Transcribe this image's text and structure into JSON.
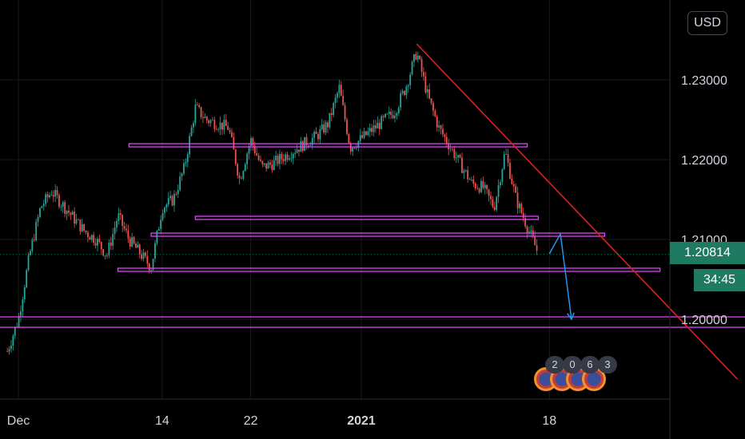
{
  "toolbar": {
    "currency_label": "USD"
  },
  "price_tag": {
    "value": "1.20814"
  },
  "countdown": {
    "value": "34:45"
  },
  "events": {
    "values": [
      "2",
      "0",
      "6",
      "3"
    ]
  },
  "colors": {
    "background": "#000000",
    "grid": "#1a1a1a",
    "up_candle": "#26a69a",
    "down_candle": "#ef5350",
    "zone": "#e040fb",
    "trendline": "#e02020",
    "projection": "#2196f3",
    "axis_text": "#d1d4dc",
    "price_tag": "#1f7a62"
  },
  "chart_data": {
    "type": "candlestick",
    "symbol_quote": "USD",
    "x_axis": {
      "tick_labels": [
        "Dec",
        "14",
        "22",
        "2021",
        "18"
      ]
    },
    "y_axis": {
      "tick_labels": [
        "1.23000",
        "1.22000",
        "1.21000",
        "1.20000"
      ],
      "ylim": [
        1.1905,
        1.2355
      ]
    },
    "last_price": 1.20814,
    "price_path": [
      [
        "2020-11-30",
        1.196
      ],
      [
        "2020-12-01",
        1.2
      ],
      [
        "2020-12-02",
        1.208
      ],
      [
        "2020-12-03",
        1.214
      ],
      [
        "2020-12-04",
        1.216
      ],
      [
        "2020-12-07",
        1.211
      ],
      [
        "2020-12-08",
        1.21
      ],
      [
        "2020-12-09",
        1.208
      ],
      [
        "2020-12-10",
        1.213
      ],
      [
        "2020-12-11",
        1.21
      ],
      [
        "2020-12-13",
        1.2065
      ],
      [
        "2020-12-14",
        1.214
      ],
      [
        "2020-12-15",
        1.215
      ],
      [
        "2020-12-16",
        1.219
      ],
      [
        "2020-12-17",
        1.2265
      ],
      [
        "2020-12-18",
        1.225
      ],
      [
        "2020-12-20",
        1.224
      ],
      [
        "2020-12-21",
        1.2175
      ],
      [
        "2020-12-22",
        1.2225
      ],
      [
        "2020-12-23",
        1.219
      ],
      [
        "2020-12-24",
        1.2195
      ],
      [
        "2020-12-28",
        1.223
      ],
      [
        "2020-12-29",
        1.2245
      ],
      [
        "2020-12-30",
        1.229
      ],
      [
        "2020-12-31",
        1.2215
      ],
      [
        "2021-01-04",
        1.226
      ],
      [
        "2021-01-05",
        1.229
      ],
      [
        "2021-01-06",
        1.2335
      ],
      [
        "2021-01-07",
        1.228
      ],
      [
        "2021-01-08",
        1.224
      ],
      [
        "2021-01-11",
        1.217
      ],
      [
        "2021-01-12",
        1.2165
      ],
      [
        "2021-01-13",
        1.214
      ],
      [
        "2021-01-14",
        1.221
      ],
      [
        "2021-01-15",
        1.215
      ],
      [
        "2021-01-17",
        1.2082
      ]
    ],
    "zones": [
      {
        "from": "2020-12-11",
        "to": "2021-01-16",
        "y_top": 1.222,
        "y_bottom": 1.2216
      },
      {
        "from": "2020-12-17",
        "to": "2021-01-17",
        "y_top": 1.2129,
        "y_bottom": 1.2125
      },
      {
        "from": "2020-12-13",
        "to": "2021-01-23",
        "y_top": 1.2108,
        "y_bottom": 1.2104
      },
      {
        "from": "2020-12-10",
        "to": "2021-01-28",
        "y_top": 1.2064,
        "y_bottom": 1.206
      },
      {
        "from": "2020-11-28",
        "to": "2021-02-05",
        "y_top": 1.2003,
        "y_bottom": 1.199
      }
    ],
    "trendline": {
      "from": [
        "2021-01-06",
        1.2345
      ],
      "to": [
        "2021-02-04",
        1.1925
      ]
    },
    "projection_path": [
      [
        "2021-01-18",
        1.2082
      ],
      [
        "2021-01-19",
        1.2107
      ],
      [
        "2021-01-20",
        1.2
      ]
    ]
  }
}
